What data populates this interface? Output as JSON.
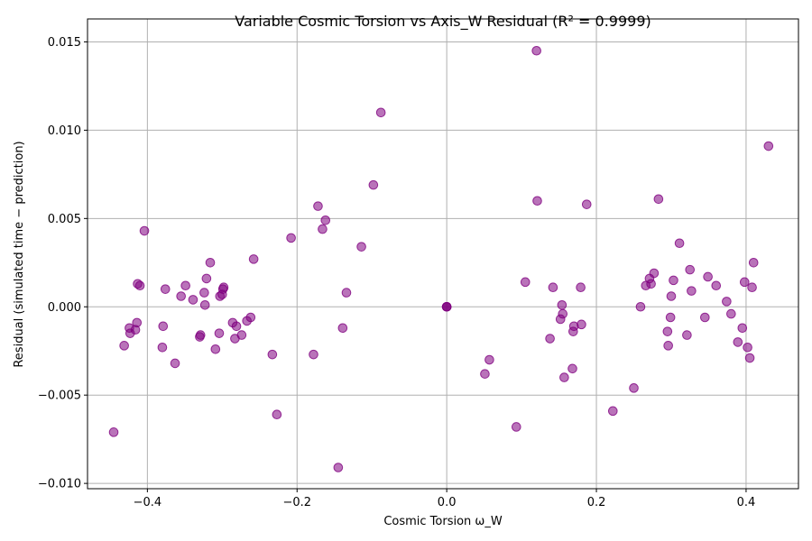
{
  "chart_data": {
    "type": "scatter",
    "title": "Variable Cosmic Torsion vs Axis_W Residual (R² = 0.9999)",
    "xlabel": "Cosmic Torsion ω_W",
    "ylabel": "Residual (simulated time − prediction)",
    "xlim": [
      -0.48,
      0.47
    ],
    "ylim": [
      -0.0103,
      0.0163
    ],
    "xticks": [
      -0.4,
      -0.2,
      0.0,
      0.2,
      0.4
    ],
    "xtick_labels": [
      "−0.4",
      "−0.2",
      "0.0",
      "0.2",
      "0.4"
    ],
    "yticks": [
      -0.01,
      -0.005,
      0.0,
      0.005,
      0.01,
      0.015
    ],
    "ytick_labels": [
      "−0.010",
      "−0.005",
      "0.000",
      "0.005",
      "0.010",
      "0.015"
    ],
    "grid": true,
    "color": "#800080",
    "points": [
      [
        -0.445,
        -0.0071
      ],
      [
        -0.431,
        -0.0022
      ],
      [
        -0.424,
        -0.0012
      ],
      [
        -0.423,
        -0.0015
      ],
      [
        -0.416,
        -0.0013
      ],
      [
        -0.414,
        -0.0009
      ],
      [
        -0.413,
        0.0013
      ],
      [
        -0.41,
        0.0012
      ],
      [
        -0.404,
        0.0043
      ],
      [
        -0.38,
        -0.0023
      ],
      [
        -0.379,
        -0.0011
      ],
      [
        -0.376,
        0.001
      ],
      [
        -0.363,
        -0.0032
      ],
      [
        -0.355,
        0.0006
      ],
      [
        -0.349,
        0.0012
      ],
      [
        -0.339,
        0.0004
      ],
      [
        -0.33,
        -0.0017
      ],
      [
        -0.329,
        -0.0016
      ],
      [
        -0.324,
        0.0008
      ],
      [
        -0.323,
        0.0001
      ],
      [
        -0.321,
        0.0016
      ],
      [
        -0.316,
        0.0025
      ],
      [
        -0.309,
        -0.0024
      ],
      [
        -0.304,
        -0.0015
      ],
      [
        -0.303,
        0.0006
      ],
      [
        -0.3,
        0.0007
      ],
      [
        -0.299,
        0.001
      ],
      [
        -0.298,
        0.0011
      ],
      [
        -0.286,
        -0.0009
      ],
      [
        -0.283,
        -0.0018
      ],
      [
        -0.281,
        -0.0011
      ],
      [
        -0.274,
        -0.0016
      ],
      [
        -0.267,
        -0.0008
      ],
      [
        -0.262,
        -0.0006
      ],
      [
        -0.258,
        0.0027
      ],
      [
        -0.233,
        -0.0027
      ],
      [
        -0.227,
        -0.0061
      ],
      [
        -0.208,
        0.0039
      ],
      [
        -0.178,
        -0.0027
      ],
      [
        -0.172,
        0.0057
      ],
      [
        -0.166,
        0.0044
      ],
      [
        -0.162,
        0.0049
      ],
      [
        -0.145,
        -0.0091
      ],
      [
        -0.139,
        -0.0012
      ],
      [
        -0.134,
        0.0008
      ],
      [
        -0.114,
        0.0034
      ],
      [
        -0.098,
        0.0069
      ],
      [
        -0.088,
        0.011
      ],
      [
        0.0,
        0.0
      ],
      [
        0.0,
        0.0
      ],
      [
        0.0,
        0.0
      ],
      [
        0.051,
        -0.0038
      ],
      [
        0.057,
        -0.003
      ],
      [
        0.093,
        -0.0068
      ],
      [
        0.105,
        0.0014
      ],
      [
        0.12,
        0.0145
      ],
      [
        0.121,
        0.006
      ],
      [
        0.138,
        -0.0018
      ],
      [
        0.142,
        0.0011
      ],
      [
        0.152,
        -0.0007
      ],
      [
        0.154,
        0.0001
      ],
      [
        0.155,
        -0.0004
      ],
      [
        0.157,
        -0.004
      ],
      [
        0.168,
        -0.0035
      ],
      [
        0.169,
        -0.0014
      ],
      [
        0.17,
        -0.0011
      ],
      [
        0.179,
        0.0011
      ],
      [
        0.18,
        -0.001
      ],
      [
        0.187,
        0.0058
      ],
      [
        0.222,
        -0.0059
      ],
      [
        0.25,
        -0.0046
      ],
      [
        0.259,
        0.0
      ],
      [
        0.266,
        0.0012
      ],
      [
        0.271,
        0.0016
      ],
      [
        0.273,
        0.0013
      ],
      [
        0.277,
        0.0019
      ],
      [
        0.283,
        0.0061
      ],
      [
        0.295,
        -0.0014
      ],
      [
        0.296,
        -0.0022
      ],
      [
        0.299,
        -0.0006
      ],
      [
        0.3,
        0.0006
      ],
      [
        0.303,
        0.0015
      ],
      [
        0.311,
        0.0036
      ],
      [
        0.321,
        -0.0016
      ],
      [
        0.325,
        0.0021
      ],
      [
        0.327,
        0.0009
      ],
      [
        0.345,
        -0.0006
      ],
      [
        0.349,
        0.0017
      ],
      [
        0.36,
        0.0012
      ],
      [
        0.374,
        0.0003
      ],
      [
        0.38,
        -0.0004
      ],
      [
        0.389,
        -0.002
      ],
      [
        0.395,
        -0.0012
      ],
      [
        0.398,
        0.0014
      ],
      [
        0.402,
        -0.0023
      ],
      [
        0.405,
        -0.0029
      ],
      [
        0.408,
        0.0011
      ],
      [
        0.41,
        0.0025
      ],
      [
        0.43,
        0.0091
      ]
    ]
  }
}
